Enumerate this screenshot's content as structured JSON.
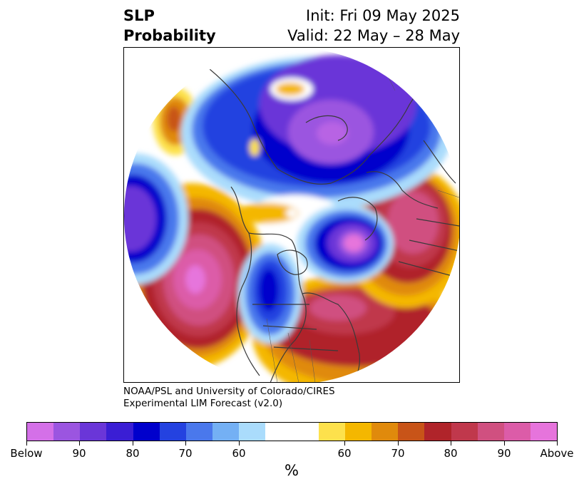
{
  "title": {
    "line1_left": "SLP",
    "line2_left": "Probability",
    "line1_right": "Init: Fri 09 May 2025",
    "line2_right": "Valid: 22 May – 28 May"
  },
  "credit": {
    "line1": "NOAA/PSL and University of Colorado/CIRES",
    "line2": "Experimental LIM Forecast (v2.0)"
  },
  "colorbar": {
    "unit": "%",
    "colors": [
      "#d470e8",
      "#9b55e0",
      "#6a36d8",
      "#3a1ed4",
      "#0000cc",
      "#2442e0",
      "#4a78ec",
      "#74b0f4",
      "#aadcfc",
      "#ffffff",
      "#ffffff",
      "#fde14c",
      "#f4b700",
      "#e08a0c",
      "#c85418",
      "#b0242a",
      "#c0384c",
      "#d05080",
      "#dc5ca8",
      "#e674dc"
    ],
    "tick_labels": [
      "Below",
      "90",
      "80",
      "70",
      "60",
      "60",
      "70",
      "80",
      "90",
      "Above"
    ]
  },
  "map": {
    "projection": "north-polar-stereographic",
    "field": "sea-level-pressure-probability",
    "anomaly_regions": [
      {
        "name": "north-pacific",
        "category": "Above",
        "level": "90+"
      },
      {
        "name": "western-atlantic-eastern-us",
        "category": "Above",
        "level": "80-90"
      },
      {
        "name": "europe-western-russia",
        "category": "Above",
        "level": "80-90"
      },
      {
        "name": "hudson-bay-greenland-west",
        "category": "Below",
        "level": "90+"
      },
      {
        "name": "central-canada",
        "category": "Below",
        "level": "80-90"
      },
      {
        "name": "arctic-siberia",
        "category": "Below",
        "level": "90+"
      },
      {
        "name": "far-east-asia-pacific-edge",
        "category": "Below",
        "level": "90"
      }
    ]
  }
}
